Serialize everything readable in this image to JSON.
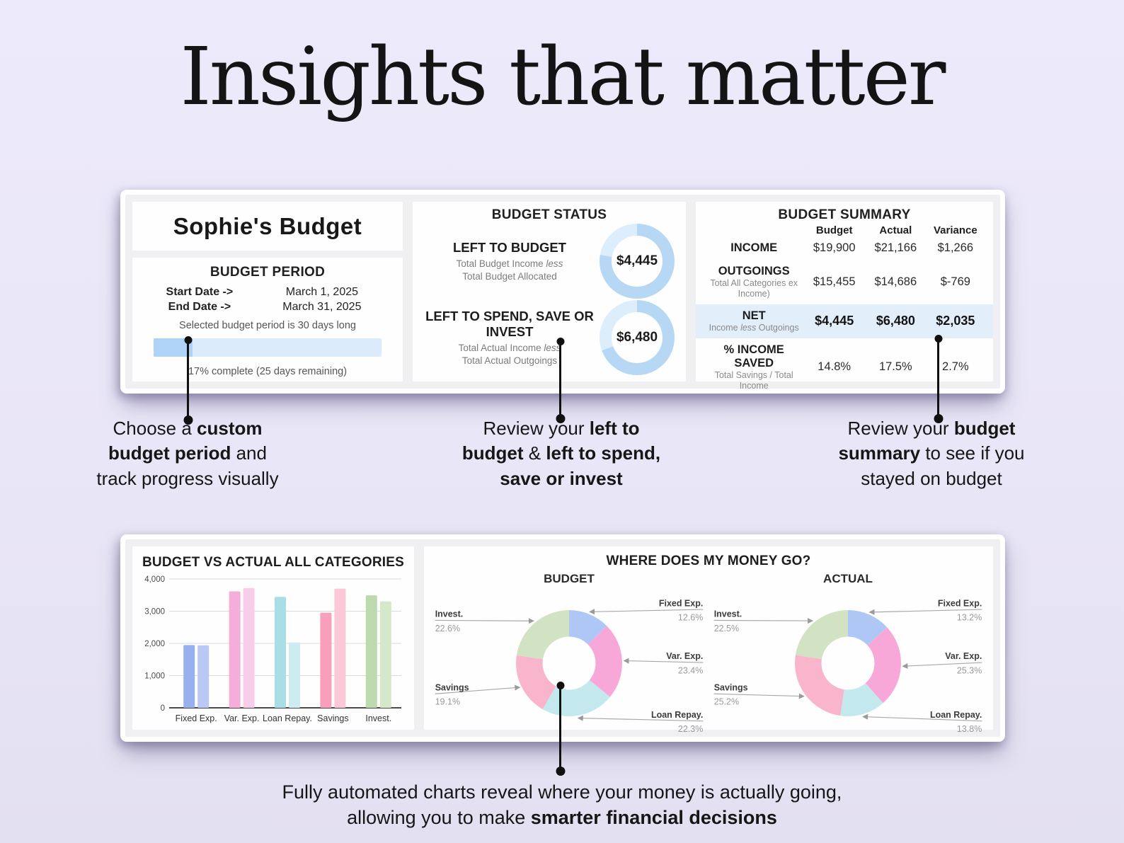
{
  "page": {
    "heading": "Insights that matter"
  },
  "colors": {
    "background": "#e9e6f7",
    "ring_dark": "#b7d8f4",
    "ring_light": "#dcedfb",
    "progress_track": "#dcebfc",
    "progress_fill": "#aed3f6",
    "net_row_highlight": "#e3eefb",
    "bar_budget": [
      "#97b0ee",
      "#f3aed9",
      "#a9dee7",
      "#f79fbb",
      "#bcdaae"
    ],
    "bar_actual": [
      "#b9c8f4",
      "#f8cdea",
      "#cdecf2",
      "#fac8d7",
      "#d6e8ca"
    ],
    "donut_slices": [
      "#afc7f4",
      "#f8a8d8",
      "#c3e8ee",
      "#f8b5cc",
      "#d2e3c3"
    ]
  },
  "top_panel": {
    "workbook_title": "Sophie's Budget",
    "budget_period": {
      "heading": "BUDGET PERIOD",
      "rows": [
        {
          "label": "Start Date ->",
          "value": "March 1, 2025"
        },
        {
          "label": "End Date ->",
          "value": "March 31, 2025"
        }
      ],
      "note": "Selected budget period is 30 days long",
      "progress_percent": 17,
      "progress_caption": "17% complete (25 days remaining)"
    },
    "budget_status": {
      "heading": "BUDGET STATUS",
      "items": [
        {
          "title": "LEFT TO BUDGET",
          "subtitle": [
            {
              "t": "Total Budget Income "
            },
            {
              "t": "less",
              "i": true
            },
            {
              "t": "\nTotal Budget Allocated"
            }
          ],
          "value": "$4,445",
          "used_percent": 77.7
        },
        {
          "title": "LEFT TO SPEND, SAVE OR INVEST",
          "subtitle": [
            {
              "t": "Total Actual Income "
            },
            {
              "t": "less",
              "i": true
            },
            {
              "t": "\nTotal Actual Outgoings"
            }
          ],
          "value": "$6,480",
          "used_percent": 69.4
        }
      ]
    },
    "budget_summary": {
      "heading": "BUDGET SUMMARY",
      "columns": [
        "Budget",
        "Actual",
        "Variance"
      ],
      "rows": [
        {
          "label": "INCOME",
          "sub": null,
          "values": [
            "$19,900",
            "$21,166",
            "$1,266"
          ],
          "highlight": false
        },
        {
          "label": "OUTGOINGS",
          "sub": [
            {
              "t": "Total All Categories ex Income)"
            }
          ],
          "values": [
            "$15,455",
            "$14,686",
            "$-769"
          ],
          "highlight": false
        },
        {
          "label": "NET",
          "sub": [
            {
              "t": "Income "
            },
            {
              "t": "less",
              "i": true
            },
            {
              "t": " Outgoings"
            }
          ],
          "values": [
            "$4,445",
            "$6,480",
            "$2,035"
          ],
          "highlight": true
        },
        {
          "label": "% INCOME SAVED",
          "sub": [
            {
              "t": "Total Savings / Total Income"
            }
          ],
          "values": [
            "14.8%",
            "17.5%",
            "2.7%"
          ],
          "highlight": false
        }
      ]
    }
  },
  "annotations": {
    "note1": [
      {
        "t": "Choose a "
      },
      {
        "t": "custom",
        "b": true
      },
      {
        "t": "\n"
      },
      {
        "t": "budget period",
        "b": true
      },
      {
        "t": " and\ntrack progress visually"
      }
    ],
    "note2": [
      {
        "t": "Review your "
      },
      {
        "t": "left to",
        "b": true
      },
      {
        "t": "\n"
      },
      {
        "t": "budget",
        "b": true
      },
      {
        "t": " & "
      },
      {
        "t": "left to spend,",
        "b": true
      },
      {
        "t": "\n"
      },
      {
        "t": "save or invest",
        "b": true
      }
    ],
    "note3": [
      {
        "t": "Review your "
      },
      {
        "t": "budget",
        "b": true
      },
      {
        "t": "\n"
      },
      {
        "t": "summary",
        "b": true
      },
      {
        "t": " to see if you\nstayed on budget"
      }
    ],
    "note_bottom": [
      {
        "t": "Fully automated charts reveal where your money is actually going,\nallowing you to make "
      },
      {
        "t": "smarter financial decisions",
        "b": true
      }
    ]
  },
  "chart_data": {
    "bar": {
      "type": "bar",
      "title": "BUDGET VS ACTUAL ALL CATEGORIES",
      "categories": [
        "Fixed Exp.",
        "Var. Exp.",
        "Loan Repay.",
        "Savings",
        "Invest."
      ],
      "series": [
        {
          "name": "Budget",
          "values": [
            1947,
            3616,
            3446,
            2952,
            3493
          ]
        },
        {
          "name": "Actual",
          "values": [
            1939,
            3716,
            2027,
            3701,
            3304
          ]
        }
      ],
      "ylim": [
        0,
        4000
      ],
      "yticks": [
        {
          "v": 0,
          "label": "0"
        },
        {
          "v": 1000,
          "label": "1,000"
        },
        {
          "v": 2000,
          "label": "2,000"
        },
        {
          "v": 3000,
          "label": "3,000"
        },
        {
          "v": 4000,
          "label": "4,000"
        }
      ],
      "grid": true,
      "legend": "none"
    },
    "donuts": {
      "type": "pie",
      "question": "WHERE DOES MY MONEY GO?",
      "labels": [
        "Fixed Exp.",
        "Var. Exp.",
        "Loan Repay.",
        "Savings",
        "Invest."
      ],
      "charts": [
        {
          "title": "BUDGET",
          "values": [
            12.6,
            23.4,
            22.3,
            19.1,
            22.6
          ]
        },
        {
          "title": "ACTUAL",
          "values": [
            13.2,
            25.3,
            13.8,
            25.2,
            22.5
          ]
        }
      ]
    },
    "gauges": [
      {
        "type": "pie",
        "title": "LEFT TO BUDGET",
        "center_value": "$4,445",
        "used_percent": 77.7,
        "remaining_percent": 22.3
      },
      {
        "type": "pie",
        "title": "LEFT TO SPEND, SAVE OR INVEST",
        "center_value": "$6,480",
        "used_percent": 69.4,
        "remaining_percent": 30.6
      }
    ]
  }
}
